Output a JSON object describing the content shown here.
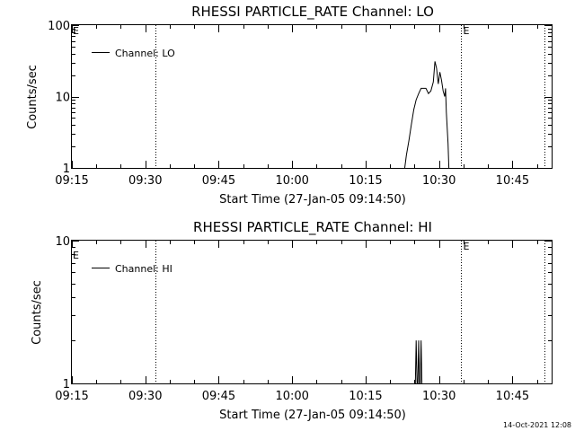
{
  "footer_timestamp": "14-Oct-2021 12:08",
  "chart_data": [
    {
      "type": "line",
      "title": "RHESSI PARTICLE_RATE Channel: LO",
      "xlabel": "Start Time (27-Jan-05 09:14:50)",
      "ylabel": "Counts/sec",
      "yscale": "log",
      "ylim": [
        1,
        100
      ],
      "yticks": [
        "1",
        "10",
        "100"
      ],
      "xlim": [
        "09:15",
        "10:53"
      ],
      "xticks": [
        "09:15",
        "09:30",
        "09:45",
        "10:00",
        "10:15",
        "10:30",
        "10:45"
      ],
      "legend": "top-left",
      "series": [
        {
          "name": "Channel: LO",
          "color": "#000000",
          "x": [
            "10:23:00",
            "10:23:20",
            "10:23:50",
            "10:24:20",
            "10:24:50",
            "10:25:20",
            "10:25:50",
            "10:26:20",
            "10:26:50",
            "10:27:20",
            "10:27:50",
            "10:28:20",
            "10:28:50",
            "10:29:10",
            "10:29:30",
            "10:29:50",
            "10:30:10",
            "10:30:30",
            "10:30:50",
            "10:31:10",
            "10:31:20",
            "10:31:30",
            "10:31:50",
            "10:32:00"
          ],
          "y": [
            1.0,
            1.5,
            2.4,
            4.0,
            6.5,
            9.0,
            11.0,
            13.0,
            13.0,
            13.0,
            11.0,
            12.0,
            16.0,
            31.0,
            25.0,
            15.0,
            22.0,
            17.0,
            12.0,
            10.0,
            13.0,
            6.0,
            2.2,
            1.0
          ]
        }
      ],
      "markers": [
        {
          "time": "09:32:00",
          "label": ""
        },
        {
          "time": "10:34:30",
          "label": "E"
        },
        {
          "time": "10:51:30",
          "label": ""
        }
      ],
      "corner_label": "E"
    },
    {
      "type": "line",
      "title": "RHESSI PARTICLE_RATE Channel: HI",
      "xlabel": "Start Time (27-Jan-05 09:14:50)",
      "ylabel": "Counts/sec",
      "yscale": "log",
      "ylim": [
        1,
        10
      ],
      "yticks": [
        "1",
        "10"
      ],
      "xlim": [
        "09:15",
        "10:53"
      ],
      "xticks": [
        "09:15",
        "09:30",
        "09:45",
        "10:00",
        "10:15",
        "10:30",
        "10:45"
      ],
      "legend": "top-left",
      "series": [
        {
          "name": "Channel: HI",
          "color": "#000000",
          "x": [
            "10:25:10",
            "10:25:20",
            "10:25:30",
            "10:25:40",
            "10:25:50",
            "10:26:00",
            "10:26:10",
            "10:26:20",
            "10:26:30"
          ],
          "y": [
            1.0,
            2.0,
            1.0,
            1.0,
            2.0,
            1.0,
            1.0,
            2.0,
            1.0
          ]
        }
      ],
      "markers": [
        {
          "time": "09:32:00",
          "label": ""
        },
        {
          "time": "10:34:30",
          "label": "E"
        },
        {
          "time": "10:51:30",
          "label": ""
        }
      ],
      "corner_label": "E"
    }
  ]
}
